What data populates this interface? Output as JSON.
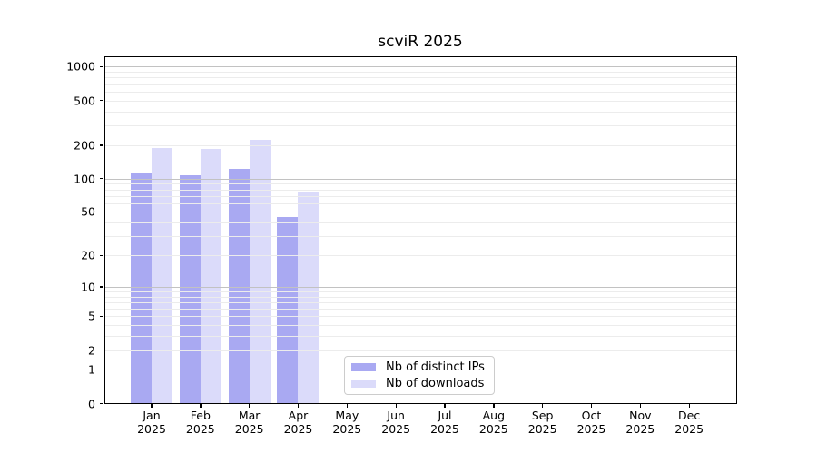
{
  "chart_data": {
    "type": "bar",
    "title": "scviR 2025",
    "categories": [
      "Jan 2025",
      "Feb 2025",
      "Mar 2025",
      "Apr 2025",
      "May 2025",
      "Jun 2025",
      "Jul 2025",
      "Aug 2025",
      "Sep 2025",
      "Oct 2025",
      "Nov 2025",
      "Dec 2025"
    ],
    "series": [
      {
        "name": "Nb of distinct IPs",
        "color": "#a9a9f2",
        "values": [
          112,
          108,
          122,
          45,
          0,
          0,
          0,
          0,
          0,
          0,
          0,
          0
        ]
      },
      {
        "name": "Nb of downloads",
        "color": "#dbdbfa",
        "values": [
          189,
          185,
          222,
          77,
          0,
          0,
          0,
          0,
          0,
          0,
          0,
          0
        ]
      }
    ],
    "y_axis": {
      "scale": "log1p",
      "tick_labels": [
        1000,
        500,
        200,
        100,
        50,
        20,
        10,
        5,
        2,
        1,
        0
      ],
      "ylim": [
        0,
        1250
      ]
    },
    "grid": {
      "horizontal": true,
      "major_values": [
        1,
        10,
        100,
        1000
      ],
      "minor_decades": [
        1,
        10,
        100
      ]
    },
    "legend": {
      "position": "inside-bottom-center"
    },
    "colors": {
      "background": "#ffffff",
      "major_grid": "#c2c2c2",
      "minor_grid": "#ececec",
      "spine": "#000000"
    }
  }
}
